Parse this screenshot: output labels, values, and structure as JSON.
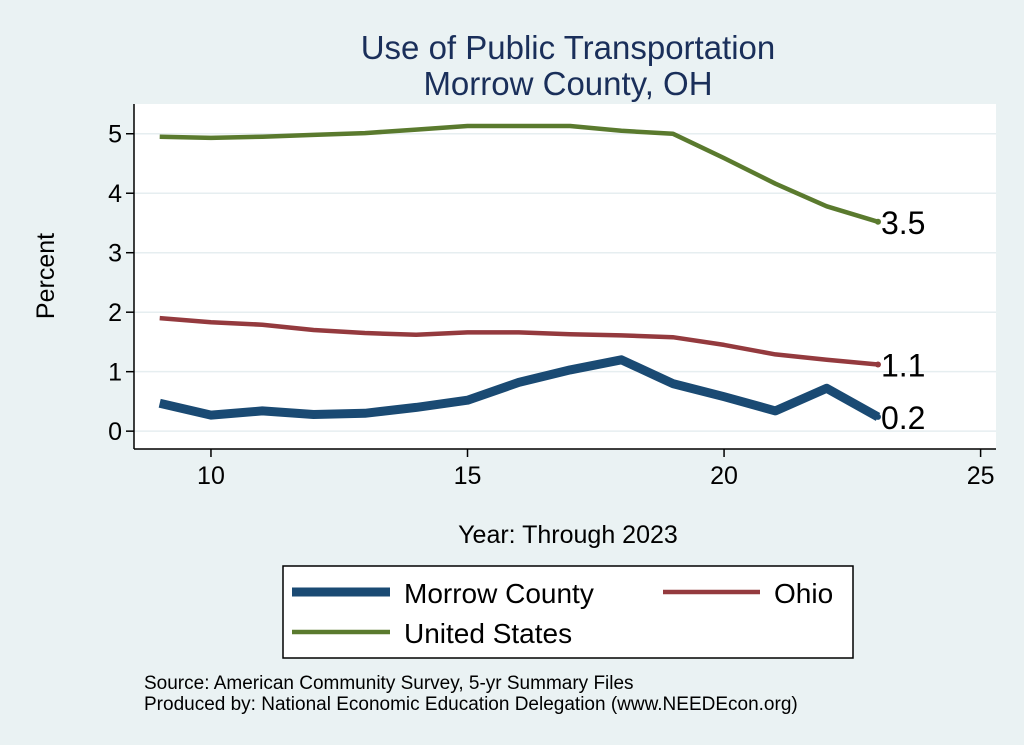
{
  "chart_data": {
    "type": "line",
    "title_lines": [
      "Use of Public Transportation",
      "Morrow County, OH"
    ],
    "xlabel": "Year: Through 2023",
    "ylabel": "Percent",
    "xlim": [
      8.5,
      25.3
    ],
    "ylim": [
      -0.3,
      5.5
    ],
    "xticks": [
      10,
      15,
      20,
      25
    ],
    "yticks": [
      0,
      1,
      2,
      3,
      4,
      5
    ],
    "grid": true,
    "legend_position": "bottom",
    "series": [
      {
        "name": "Morrow County",
        "color": "#1a4a73",
        "width": "thick",
        "x": [
          9,
          10,
          11,
          12,
          13,
          14,
          15,
          16,
          17,
          18,
          19,
          20,
          21,
          22,
          23
        ],
        "y": [
          0.47,
          0.27,
          0.34,
          0.28,
          0.3,
          0.4,
          0.52,
          0.82,
          1.03,
          1.2,
          0.8,
          0.58,
          0.34,
          0.72,
          0.24
        ],
        "end_label": "0.2"
      },
      {
        "name": "Ohio",
        "color": "#943a3e",
        "width": "medium",
        "x": [
          9,
          10,
          11,
          12,
          13,
          14,
          15,
          16,
          17,
          18,
          19,
          20,
          21,
          22,
          23
        ],
        "y": [
          1.9,
          1.83,
          1.79,
          1.7,
          1.65,
          1.62,
          1.66,
          1.66,
          1.63,
          1.61,
          1.58,
          1.45,
          1.29,
          1.2,
          1.12
        ],
        "end_label": "1.1"
      },
      {
        "name": "United States",
        "color": "#5a7a2e",
        "width": "medium",
        "x": [
          9,
          10,
          11,
          12,
          13,
          14,
          15,
          16,
          17,
          18,
          19,
          20,
          21,
          22,
          23
        ],
        "y": [
          4.95,
          4.93,
          4.95,
          4.98,
          5.01,
          5.07,
          5.13,
          5.13,
          5.13,
          5.05,
          5.0,
          4.59,
          4.16,
          3.78,
          3.52
        ],
        "end_label": "3.5"
      }
    ],
    "source_lines": [
      "Source: American Community Survey, 5-yr Summary Files",
      "Produced by: National Economic Education Delegation (www.NEEDEcon.org)"
    ]
  }
}
